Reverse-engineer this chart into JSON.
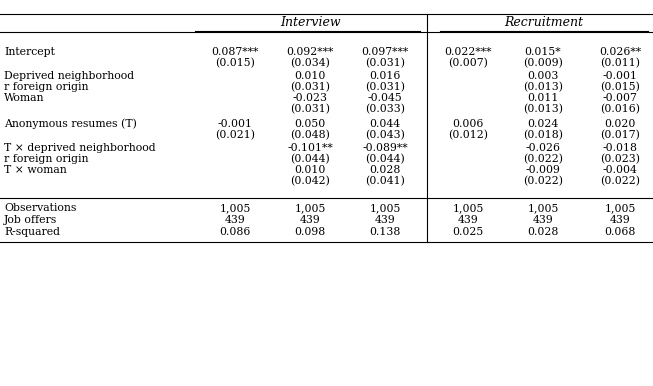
{
  "col_headers": [
    "Interview",
    "Recruitment"
  ],
  "row_label_prefixes": [
    "Intercept",
    "",
    "Deprived neighborhood",
    "r foreign origin",
    "Woman",
    "",
    "Anonymous resumes (T)",
    "",
    "T × deprived neighborhood",
    "r foreign origin",
    "T × woman",
    "",
    "Observations",
    "Job offers",
    "R-squared"
  ],
  "data": [
    [
      "0.087***",
      "0.092***",
      "0.097***",
      "0.022***",
      "0.015*",
      "0.026**"
    ],
    [
      "(0.015)",
      "(0.034)",
      "(0.031)",
      "(0.007)",
      "(0.009)",
      "(0.011)"
    ],
    [
      "",
      "0.010",
      "0.016",
      "",
      "0.003",
      "-0.001"
    ],
    [
      "",
      "(0.031)",
      "(0.031)",
      "",
      "(0.013)",
      "(0.015)"
    ],
    [
      "",
      "-0.023",
      "-0.045",
      "",
      "0.011",
      "-0.007"
    ],
    [
      "",
      "(0.031)",
      "(0.033)",
      "",
      "(0.013)",
      "(0.016)"
    ],
    [
      "-0.001",
      "0.050",
      "0.044",
      "0.006",
      "0.024",
      "0.020"
    ],
    [
      "(0.021)",
      "(0.048)",
      "(0.043)",
      "(0.012)",
      "(0.018)",
      "(0.017)"
    ],
    [
      "",
      "-0.101**",
      "-0.089**",
      "",
      "-0.026",
      "-0.018"
    ],
    [
      "",
      "(0.044)",
      "(0.044)",
      "",
      "(0.022)",
      "(0.023)"
    ],
    [
      "",
      "0.010",
      "0.028",
      "",
      "-0.009",
      "-0.004"
    ],
    [
      "",
      "(0.042)",
      "(0.041)",
      "",
      "(0.022)",
      "(0.022)"
    ],
    [
      "1,005",
      "1,005",
      "1,005",
      "1,005",
      "1,005",
      "1,005"
    ],
    [
      "439",
      "439",
      "439",
      "439",
      "439",
      "439"
    ],
    [
      "0.086",
      "0.098",
      "0.138",
      "0.025",
      "0.028",
      "0.068"
    ]
  ],
  "background_color": "#ffffff",
  "text_color": "#000000",
  "font_size": 7.8,
  "header_font_size": 9.0
}
